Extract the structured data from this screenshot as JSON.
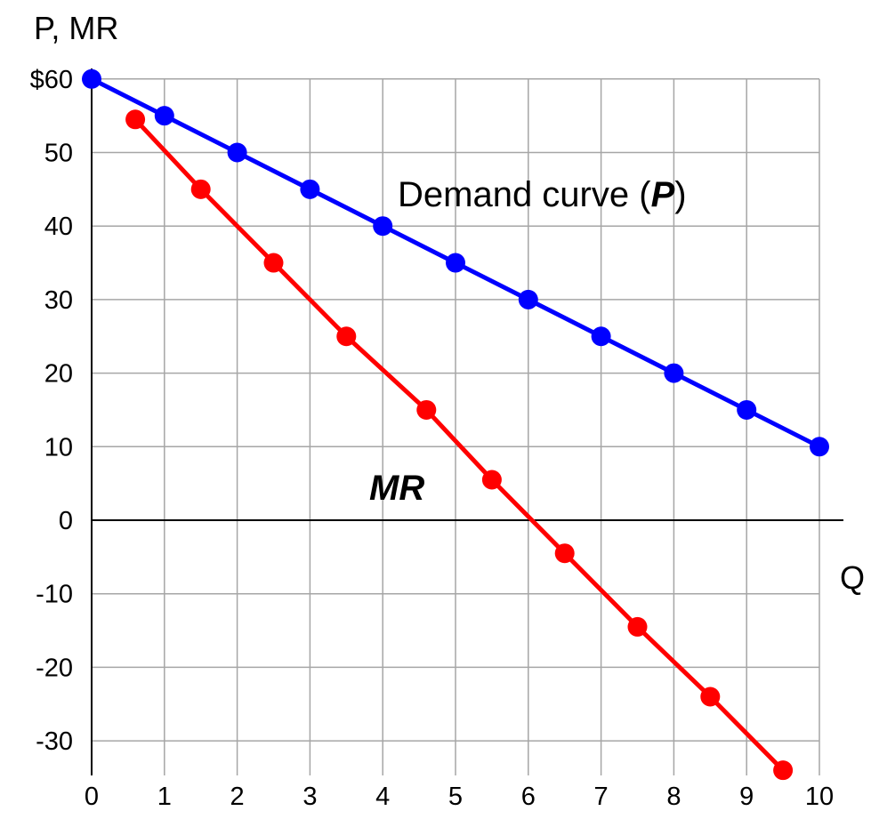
{
  "chart_data": {
    "type": "line",
    "ylabel": "P, MR",
    "xlabel": "Q",
    "xlim": [
      0,
      10
    ],
    "ylim": [
      -35,
      60
    ],
    "x_ticks": [
      "0",
      "1",
      "2",
      "3",
      "4",
      "5",
      "6",
      "7",
      "8",
      "9",
      "10"
    ],
    "y_ticks": [
      "$60",
      "50",
      "40",
      "30",
      "20",
      "10",
      "0",
      "-10",
      "-20",
      "-30"
    ],
    "grid": true,
    "series": [
      {
        "name": "Demand curve (P)",
        "color": "#0000ff",
        "points": [
          [
            0,
            60
          ],
          [
            1,
            55
          ],
          [
            2,
            50
          ],
          [
            3,
            45
          ],
          [
            4,
            40
          ],
          [
            5,
            35
          ],
          [
            6,
            30
          ],
          [
            7,
            25
          ],
          [
            8,
            20
          ],
          [
            9,
            15
          ],
          [
            10,
            10
          ]
        ]
      },
      {
        "name": "MR",
        "color": "#ff0000",
        "points": [
          [
            0.6,
            54.5
          ],
          [
            1.5,
            45
          ],
          [
            2.5,
            35
          ],
          [
            3.5,
            25
          ],
          [
            4.6,
            15
          ],
          [
            5.5,
            5.5
          ],
          [
            6.5,
            -4.5
          ],
          [
            7.5,
            -14.5
          ],
          [
            8.5,
            -24
          ],
          [
            9.5,
            -34
          ]
        ]
      }
    ],
    "annotations": {
      "demand_prefix": "Demand curve (",
      "demand_emph": "P",
      "demand_suffix": ")",
      "mr": "MR"
    }
  }
}
